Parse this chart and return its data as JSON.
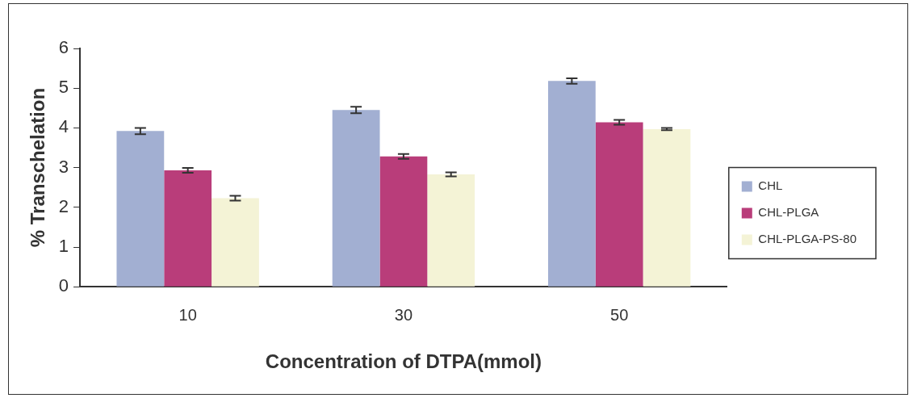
{
  "chart_data": {
    "type": "bar",
    "xlabel": "Concentration of DTPA(mmol)",
    "ylabel": "% Transchelation",
    "categories": [
      "10",
      "30",
      "50"
    ],
    "series": [
      {
        "name": "CHL",
        "color": "#a2afd2",
        "values": [
          3.92,
          4.45,
          5.18
        ],
        "errors": [
          0.08,
          0.08,
          0.07
        ]
      },
      {
        "name": "CHL-PLGA",
        "color": "#b93d7a",
        "values": [
          2.93,
          3.28,
          4.14
        ],
        "errors": [
          0.06,
          0.06,
          0.06
        ]
      },
      {
        "name": "CHL-PLGA-PS-80",
        "color": "#f4f3d6",
        "values": [
          2.23,
          2.83,
          3.97
        ],
        "errors": [
          0.06,
          0.05,
          0.03
        ]
      }
    ],
    "ylim": [
      0,
      6
    ],
    "yticks": [
      0,
      1,
      2,
      3,
      4,
      5,
      6
    ],
    "grid": false,
    "legend": "right"
  }
}
